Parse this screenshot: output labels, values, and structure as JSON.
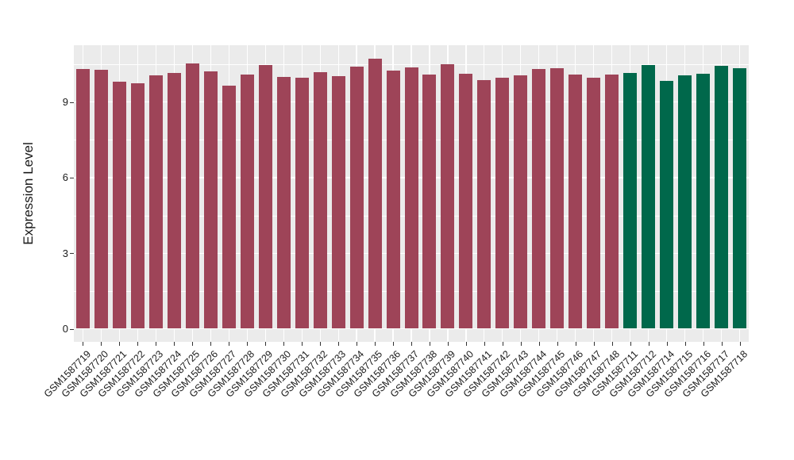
{
  "figure": {
    "background": "#FFFFFF"
  },
  "chart_data": {
    "type": "bar",
    "title": "",
    "xlabel": "",
    "ylabel": "Expression Level",
    "ylim": [
      -0.53,
      11.24
    ],
    "yticks": [
      0,
      3,
      6,
      9
    ],
    "ytick_labels": [
      "0",
      "3",
      "6",
      "9"
    ],
    "minor_gridlines": [
      1.5,
      4.5,
      7.5,
      10.5
    ],
    "grid": "on",
    "legend_position": "none",
    "panel_bg": "#EBEBEB",
    "grid_color": "#FFFFFF",
    "tick_text_color": "#1A1A1A",
    "group_colors": {
      "group1": "#9E4458",
      "group2": "#00684B"
    },
    "categories": [
      "GSM1587719",
      "GSM1587720",
      "GSM1587721",
      "GSM1587722",
      "GSM1587723",
      "GSM1587724",
      "GSM1587725",
      "GSM1587726",
      "GSM1587727",
      "GSM1587728",
      "GSM1587729",
      "GSM1587730",
      "GSM1587731",
      "GSM1587732",
      "GSM1587733",
      "GSM1587734",
      "GSM1587735",
      "GSM1587736",
      "GSM1587737",
      "GSM1587738",
      "GSM1587739",
      "GSM1587740",
      "GSM1587741",
      "GSM1587742",
      "GSM1587743",
      "GSM1587744",
      "GSM1587745",
      "GSM1587746",
      "GSM1587747",
      "GSM1587748",
      "GSM1587711",
      "GSM1587712",
      "GSM1587714",
      "GSM1587715",
      "GSM1587716",
      "GSM1587717",
      "GSM1587718"
    ],
    "values": [
      10.3,
      10.28,
      9.8,
      9.73,
      10.06,
      10.14,
      10.52,
      10.22,
      9.66,
      10.08,
      10.47,
      9.99,
      9.95,
      10.18,
      10.04,
      10.4,
      10.71,
      10.25,
      10.38,
      10.1,
      10.51,
      10.12,
      9.86,
      9.95,
      10.06,
      10.3,
      10.34,
      10.09,
      9.96,
      10.09,
      10.15,
      10.47,
      9.85,
      10.07,
      10.11,
      10.44,
      10.34
    ],
    "groups": [
      "group1",
      "group1",
      "group1",
      "group1",
      "group1",
      "group1",
      "group1",
      "group1",
      "group1",
      "group1",
      "group1",
      "group1",
      "group1",
      "group1",
      "group1",
      "group1",
      "group1",
      "group1",
      "group1",
      "group1",
      "group1",
      "group1",
      "group1",
      "group1",
      "group1",
      "group1",
      "group1",
      "group1",
      "group1",
      "group1",
      "group2",
      "group2",
      "group2",
      "group2",
      "group2",
      "group2",
      "group2"
    ]
  }
}
